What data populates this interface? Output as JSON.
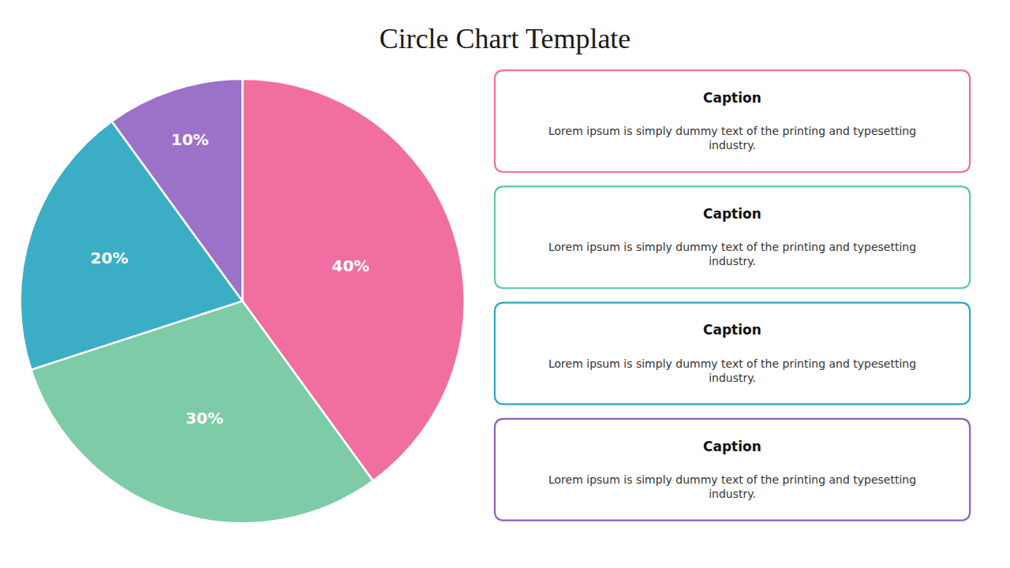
{
  "chart_data": {
    "type": "pie",
    "title": "Circle Chart Template",
    "values": [
      40,
      30,
      20,
      10
    ],
    "value_labels": [
      "40%",
      "30%",
      "20%",
      "10%"
    ],
    "colors": [
      "#F06FA0",
      "#7ECBA8",
      "#3BAEC6",
      "#9B72C8"
    ],
    "data_labels": true,
    "annotations": [
      {
        "title": "Caption",
        "text": "Lorem ipsum is simply dummy text of the printing and typesetting\nindustry.",
        "color": "#F06FA0"
      },
      {
        "title": "Caption",
        "text": "Lorem ipsum is simply dummy text of the printing and typesetting\nindustry.",
        "color": "#5DC8A0"
      },
      {
        "title": "Caption",
        "text": "Lorem ipsum is simply dummy text of the printing and typesetting\nindustry.",
        "color": "#2AA8C4"
      },
      {
        "title": "Caption",
        "text": "Lorem ipsum is simply dummy text of the printing and typesetting\nindustry.",
        "color": "#8B5FBF"
      }
    ]
  }
}
